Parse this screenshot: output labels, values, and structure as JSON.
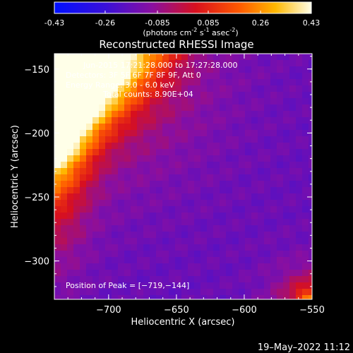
{
  "colorbar": {
    "tick_labels": [
      "-0.43",
      "-0.26",
      "-0.085",
      "0.085",
      "0.26",
      "0.43"
    ],
    "range": [
      -0.43,
      0.43
    ],
    "unit_label": "(photons cm",
    "unit_sup1": "-2",
    "unit_mid": " s",
    "unit_sup2": "-1",
    "unit_mid2": " asec",
    "unit_sup3": "-2",
    "unit_end": ")"
  },
  "chart_data": {
    "type": "heatmap",
    "title": "Reconstructed RHESSI Image",
    "xlabel": "Heliocentric X (arcsec)",
    "ylabel": "Heliocentric Y (arcsec)",
    "xlim": [
      -740,
      -550
    ],
    "ylim": [
      -330,
      -138
    ],
    "x_ticks": [
      -700,
      -650,
      -600,
      -550
    ],
    "x_tick_labels": [
      "−700",
      "−650",
      "−600",
      "−550"
    ],
    "y_ticks": [
      -150,
      -200,
      -250,
      -300
    ],
    "y_tick_labels": [
      "−150",
      "−200",
      "−250",
      "−300"
    ],
    "colormap": "Rainbow/heat (purple-red-yellow-white)",
    "colorbar_range": [
      -0.43,
      0.43
    ],
    "peak_position": [
      -719,
      -144
    ],
    "annotations": [
      "Detectors: 3F 5F 6F 7F 8F 9F, Att 0",
      "Energy Range: 3.0 - 6.0 keV",
      "Total counts: 8.90E+04",
      "Position of Peak = [−719,−144]"
    ]
  },
  "annotation": {
    "time_line": "Jun-2015 17:21:28.000 to 17:27:28.000",
    "detectors": "Detectors: 3F 5F 6F 7F 8F 9F, Att 0",
    "energy": "Energy Range: 3.0 - 6.0 keV",
    "counts": "Total counts: 8.90E+04",
    "peak": "Position of Peak = [−719,−144]"
  },
  "footer": {
    "date": "19–May–2022 11:12"
  },
  "colors": {
    "background": "#000000",
    "text": "#ffffff"
  }
}
